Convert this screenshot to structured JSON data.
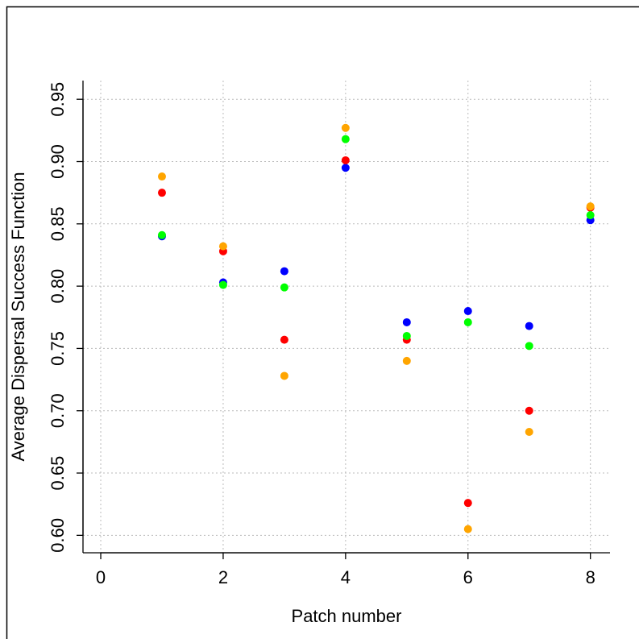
{
  "chart_data": {
    "type": "scatter",
    "x_label": "Patch number",
    "y_label": "Average Dispersal Success Function",
    "x": [
      1,
      2,
      3,
      4,
      5,
      6,
      7,
      8
    ],
    "series": [
      {
        "color": "#0000ff",
        "values": [
          0.84,
          0.803,
          0.812,
          0.895,
          0.771,
          0.78,
          0.768,
          0.853
        ]
      },
      {
        "color": "#ff0000",
        "values": [
          0.875,
          0.828,
          0.757,
          0.901,
          0.757,
          0.626,
          0.7,
          0.863
        ]
      },
      {
        "color": "#00ff00",
        "values": [
          0.841,
          0.801,
          0.799,
          0.918,
          0.76,
          0.771,
          0.752,
          0.857
        ]
      },
      {
        "color": "#ffa500",
        "values": [
          0.888,
          0.832,
          0.728,
          0.927,
          0.74,
          0.605,
          0.683,
          0.864
        ]
      }
    ],
    "xlim": [
      -0.29,
      8.32
    ],
    "ylim": [
      0.586,
      0.965
    ],
    "xticks": [
      0,
      2,
      4,
      6,
      8
    ],
    "yticks": [
      {
        "value": 0.6,
        "label": "0.60"
      },
      {
        "value": 0.65,
        "label": "0.65"
      },
      {
        "value": 0.7,
        "label": "0.70"
      },
      {
        "value": 0.75,
        "label": "0.75"
      },
      {
        "value": 0.8,
        "label": "0.80"
      },
      {
        "value": 0.85,
        "label": "0.85"
      },
      {
        "value": 0.9,
        "label": "0.90"
      },
      {
        "value": 0.95,
        "label": "0.95"
      }
    ],
    "grid": true
  }
}
